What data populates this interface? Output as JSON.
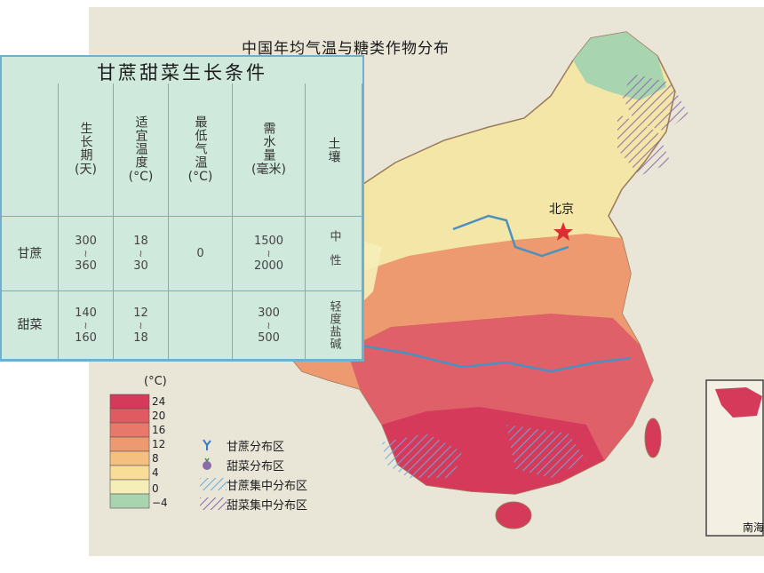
{
  "map": {
    "title": "中国年均气温与糖类作物分布",
    "beijing_label": "北京",
    "south_sea_label": "南海"
  },
  "conditions_table": {
    "title": "甘蔗甜菜生长条件",
    "headers": [
      {
        "label": "生长期",
        "unit": "(天)"
      },
      {
        "label": "适宜温度",
        "unit": "(°C)"
      },
      {
        "label": "最低气温",
        "unit": "(°C)"
      },
      {
        "label": "需水量",
        "unit": "(毫米)"
      },
      {
        "label": "土壤",
        "unit": ""
      }
    ],
    "rows": [
      {
        "crop": "甘蔗",
        "growth_days": [
          "300",
          "360"
        ],
        "suitable_temp": [
          "18",
          "30"
        ],
        "min_temp": "0",
        "water": [
          "1500",
          "2000"
        ],
        "soil": "中性"
      },
      {
        "crop": "甜菜",
        "growth_days": [
          "140",
          "160"
        ],
        "suitable_temp": [
          "12",
          "18"
        ],
        "min_temp": "",
        "water": [
          "300",
          "500"
        ],
        "soil": "轻度盐碱"
      }
    ],
    "tilde": "≀"
  },
  "legend": {
    "unit": "(°C)",
    "ticks": [
      "24",
      "20",
      "16",
      "12",
      "8",
      "4",
      "0",
      "−4"
    ],
    "band_colors": [
      "#d63a5a",
      "#e05a62",
      "#e8786a",
      "#ee9a70",
      "#f4c080",
      "#f8dc98",
      "#f6eeb8",
      "#a8d4b0"
    ],
    "items": [
      {
        "text": "甘蔗分布区",
        "icon": "sugarcane-icon"
      },
      {
        "text": "甜菜分布区",
        "icon": "sugar-beet-icon"
      },
      {
        "text": "甘蔗集中分布区",
        "icon": "sugarcane-concentrated-hatch"
      },
      {
        "text": "甜菜集中分布区",
        "icon": "sugar-beet-concentrated-hatch"
      }
    ]
  },
  "colors": {
    "table_background": "#cfeadc",
    "table_border": "#6fb0cf",
    "sugarcane_hatch": "#6aa9dc",
    "beet_hatch": "#8a6aa8"
  }
}
